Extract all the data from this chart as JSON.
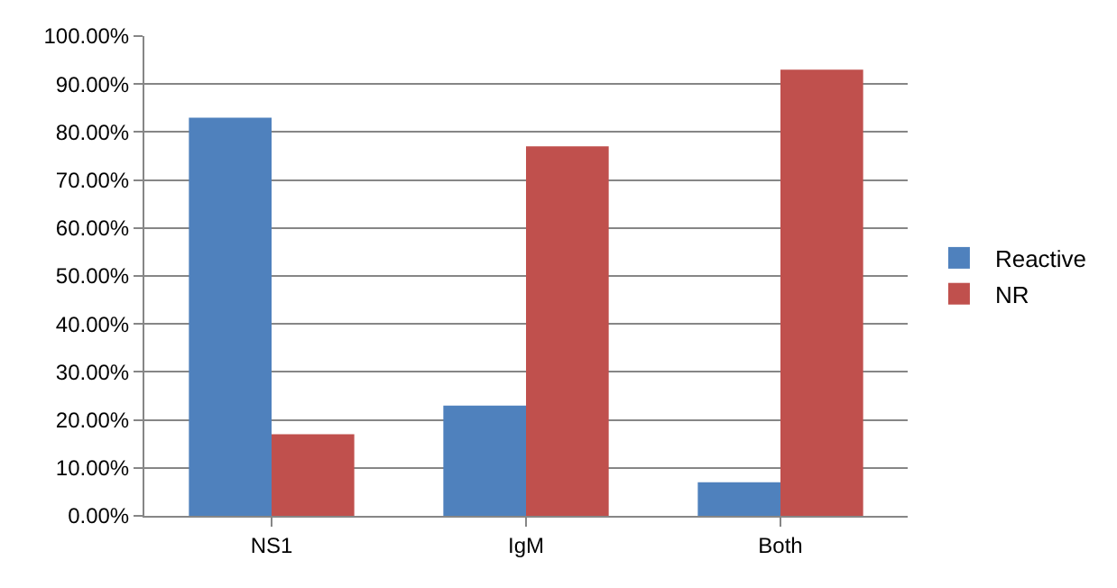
{
  "chart_data": {
    "type": "bar",
    "categories": [
      "NS1",
      "IgM",
      "Both"
    ],
    "series": [
      {
        "name": "Reactive",
        "color": "#4f81bd",
        "values": [
          83,
          23,
          7
        ]
      },
      {
        "name": "NR",
        "color": "#c0504d",
        "values": [
          17,
          77,
          93
        ]
      }
    ],
    "ylim": [
      0,
      100
    ],
    "yticks": [
      {
        "value": 0,
        "label": "0.00%"
      },
      {
        "value": 10,
        "label": "10.00%"
      },
      {
        "value": 20,
        "label": "20.00%"
      },
      {
        "value": 30,
        "label": "30.00%"
      },
      {
        "value": 40,
        "label": "40.00%"
      },
      {
        "value": 50,
        "label": "50.00%"
      },
      {
        "value": 60,
        "label": "60.00%"
      },
      {
        "value": 70,
        "label": "70.00%"
      },
      {
        "value": 80,
        "label": "80.00%"
      },
      {
        "value": 90,
        "label": "90.00%"
      },
      {
        "value": 100,
        "label": "100.00%"
      }
    ],
    "grid": "y",
    "legend": "right"
  }
}
